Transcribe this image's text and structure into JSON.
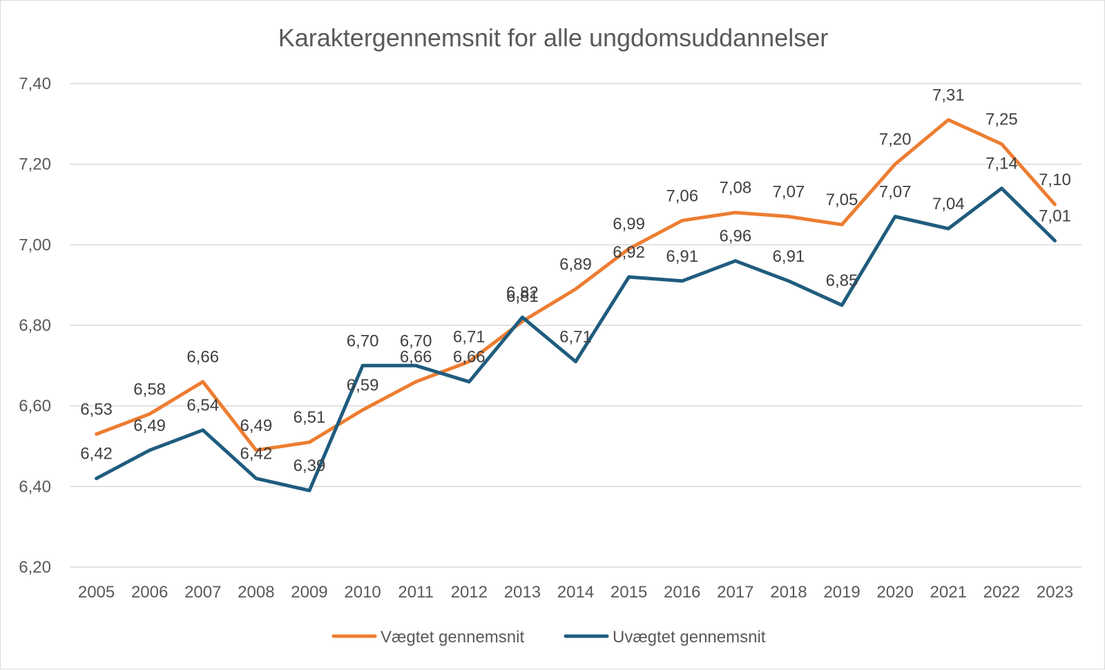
{
  "chart_data": {
    "type": "line",
    "title": "Karaktergennemsnit for alle ungdomsuddannelser",
    "categories": [
      "2005",
      "2006",
      "2007",
      "2008",
      "2009",
      "2010",
      "2011",
      "2012",
      "2013",
      "2014",
      "2015",
      "2016",
      "2017",
      "2018",
      "2019",
      "2020",
      "2021",
      "2022",
      "2023"
    ],
    "series": [
      {
        "name": "Vægtet gennemsnit",
        "color": "#ED7D31",
        "values": [
          6.53,
          6.58,
          6.66,
          6.49,
          6.51,
          6.59,
          6.66,
          6.71,
          6.81,
          6.89,
          6.99,
          7.06,
          7.08,
          7.07,
          7.05,
          7.2,
          7.31,
          7.25,
          7.1
        ]
      },
      {
        "name": "Uvægtet gennemsnit",
        "color": "#1F5C7E",
        "values": [
          6.42,
          6.49,
          6.54,
          6.42,
          6.39,
          6.7,
          6.7,
          6.66,
          6.82,
          6.71,
          6.92,
          6.91,
          6.96,
          6.91,
          6.85,
          7.07,
          7.04,
          7.14,
          7.01
        ]
      }
    ],
    "y_ticks": [
      "6,20",
      "6,40",
      "6,60",
      "6,80",
      "7,00",
      "7,20",
      "7,40"
    ],
    "ylim": [
      6.2,
      7.4
    ],
    "grid": true,
    "legend_position": "bottom"
  }
}
